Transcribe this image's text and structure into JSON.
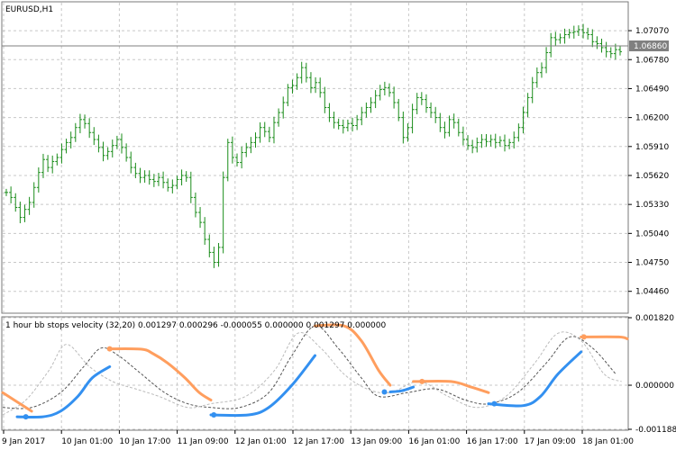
{
  "window": {
    "symbol_title": "EURUSD,H1",
    "current_price_label": "1.06860"
  },
  "chart_data": [
    {
      "type": "bar",
      "title": "EURUSD,H1",
      "series_kind": "ohlc-bars",
      "ylim": [
        1.0425,
        1.0735
      ],
      "y_ticks": [
        "1.07070",
        "1.06780",
        "1.06490",
        "1.06200",
        "1.05910",
        "1.05620",
        "1.05330",
        "1.05040",
        "1.04750",
        "1.04460"
      ],
      "current_price": 1.0686,
      "colors": {
        "bars": "#1a8c1a",
        "price_line": "#7f7f7f",
        "grid": "#c8c8c8"
      },
      "closes": [
        1.0545,
        1.054,
        1.053,
        1.052,
        1.0528,
        1.0535,
        1.055,
        1.0565,
        1.0578,
        1.057,
        1.0576,
        1.058,
        1.0588,
        1.0595,
        1.06,
        1.061,
        1.0618,
        1.0614,
        1.0605,
        1.0598,
        1.059,
        1.0582,
        1.0586,
        1.0592,
        1.0598,
        1.059,
        1.058,
        1.057,
        1.0564,
        1.056,
        1.0562,
        1.0558,
        1.0556,
        1.056,
        1.0555,
        1.055,
        1.0552,
        1.0558,
        1.0562,
        1.056,
        1.054,
        1.0525,
        1.0515,
        1.0498,
        1.0485,
        1.0475,
        1.049,
        1.056,
        1.0595,
        1.058,
        1.0575,
        1.0585,
        1.059,
        1.0595,
        1.06,
        1.061,
        1.0606,
        1.06,
        1.0615,
        1.0625,
        1.0635,
        1.065,
        1.0652,
        1.066,
        1.067,
        1.066,
        1.065,
        1.0655,
        1.0645,
        1.063,
        1.062,
        1.0615,
        1.0612,
        1.061,
        1.0614,
        1.0612,
        1.0618,
        1.0625,
        1.063,
        1.0635,
        1.0642,
        1.0648,
        1.065,
        1.0645,
        1.0635,
        1.062,
        1.06,
        1.061,
        1.0628,
        1.064,
        1.0638,
        1.063,
        1.0625,
        1.062,
        1.061,
        1.0605,
        1.0618,
        1.0615,
        1.0605,
        1.0598,
        1.0592,
        1.059,
        1.0595,
        1.0598,
        1.0596,
        1.0598,
        1.0595,
        1.0597,
        1.0592,
        1.0595,
        1.06,
        1.061,
        1.0625,
        1.064,
        1.0655,
        1.0665,
        1.067,
        1.0685,
        1.07,
        1.0698,
        1.07,
        1.0703,
        1.0705,
        1.0706,
        1.0708,
        1.0705,
        1.0703,
        1.0696,
        1.0694,
        1.069,
        1.0686,
        1.0684,
        1.0688,
        1.0686
      ]
    },
    {
      "type": "line",
      "title": "1 hour bb stops velocity (32,20) 0.001297 0.000296 -0.000055 0.000000 0.001297 0.000000",
      "ylim": [
        -0.001188,
        0.00182
      ],
      "y_ticks": [
        "0.001820",
        "0.000000",
        "-0.001188"
      ],
      "series": [
        {
          "color": "#ff9e5e",
          "points": [
            [
              0,
              -0.0002
            ],
            [
              8,
              -0.0006
            ],
            [
              10,
              -0.0007
            ]
          ]
        },
        {
          "color": "#3390f0",
          "points": [
            [
              5,
              -0.00085
            ],
            [
              14,
              -0.00085
            ],
            [
              20,
              -0.0007
            ],
            [
              26,
              -0.0003
            ],
            [
              31,
              0.0002
            ],
            [
              37,
              0.0005
            ]
          ]
        },
        {
          "color": "#ff9e5e",
          "points": [
            [
              37,
              0.00098
            ],
            [
              48,
              0.00097
            ],
            [
              52,
              0.00085
            ],
            [
              57,
              0.0006
            ],
            [
              63,
              0.0002
            ],
            [
              68,
              -0.0002
            ],
            [
              72,
              -0.0004
            ]
          ]
        },
        {
          "color": "#3390f0",
          "points": [
            [
              72,
              -0.0008
            ],
            [
              85,
              -0.0008
            ],
            [
              92,
              -0.0006
            ],
            [
              100,
              0
            ],
            [
              108,
              0.0008
            ]
          ]
        },
        {
          "color": "#ff9e5e",
          "points": [
            [
              108,
              0.0016
            ],
            [
              118,
              0.0016
            ],
            [
              124,
              0.0012
            ],
            [
              130,
              0.0004
            ],
            [
              134,
              0
            ]
          ]
        },
        {
          "color": "#3390f0",
          "points": [
            [
              134,
              -0.00018
            ],
            [
              138,
              -0.00015
            ],
            [
              142,
              -5e-05
            ]
          ]
        },
        {
          "color": "#ff9e5e",
          "points": [
            [
              142,
              0.0001
            ],
            [
              155,
              0.0001
            ],
            [
              162,
              -5e-05
            ],
            [
              168,
              -0.0002
            ]
          ]
        },
        {
          "color": "#3390f0",
          "points": [
            [
              168,
              -0.0005
            ],
            [
              180,
              -0.00055
            ],
            [
              186,
              -0.0003
            ],
            [
              192,
              0.0003
            ],
            [
              200,
              0.0009
            ]
          ]
        },
        {
          "color": "#ff9e5e",
          "points": [
            [
              200,
              0.0013
            ],
            [
              213,
              0.0013
            ],
            [
              216,
              0.00125
            ]
          ]
        }
      ],
      "dots": [
        {
          "color": "#3390f0",
          "x": 8,
          "y": -0.00085
        },
        {
          "color": "#ff9e5e",
          "x": 37,
          "y": 0.00098
        },
        {
          "color": "#3390f0",
          "x": 73,
          "y": -0.0008
        },
        {
          "color": "#3390f0",
          "x": 132,
          "y": -0.00018
        },
        {
          "color": "#ff9e5e",
          "x": 145,
          "y": 0.0001
        },
        {
          "color": "#3390f0",
          "x": 170,
          "y": -0.0005
        },
        {
          "color": "#ff9e5e",
          "x": 201,
          "y": 0.0013
        }
      ],
      "dashed_guides": [
        {
          "color": "#555555",
          "points": [
            [
              0,
              -0.0006
            ],
            [
              10,
              -0.0006
            ],
            [
              20,
              -0.0002
            ],
            [
              28,
              0.0005
            ],
            [
              34,
              0.001
            ],
            [
              40,
              0.0008
            ],
            [
              48,
              0.0003
            ],
            [
              56,
              -0.0002
            ],
            [
              64,
              -0.0005
            ],
            [
              72,
              -0.0006
            ],
            [
              82,
              -0.0006
            ],
            [
              92,
              -0.0002
            ],
            [
              100,
              0.0008
            ],
            [
              108,
              0.0016
            ],
            [
              116,
              0.001
            ],
            [
              124,
              0.0002
            ],
            [
              130,
              -0.0003
            ],
            [
              140,
              -0.0002
            ],
            [
              150,
              -0.0001
            ],
            [
              160,
              -0.0004
            ],
            [
              168,
              -0.0005
            ],
            [
              178,
              -0.0002
            ],
            [
              188,
              0.0006
            ],
            [
              196,
              0.0013
            ],
            [
              204,
              0.001
            ],
            [
              212,
              0.0003
            ]
          ]
        },
        {
          "color": "#bbbbbb",
          "points": [
            [
              0,
              -0.0008
            ],
            [
              8,
              -0.0004
            ],
            [
              16,
              0.0004
            ],
            [
              22,
              0.0011
            ],
            [
              30,
              0.0005
            ],
            [
              38,
              0.0001
            ],
            [
              46,
              -0.0001
            ],
            [
              54,
              -0.0003
            ],
            [
              64,
              -0.0006
            ],
            [
              72,
              -0.0005
            ],
            [
              84,
              -0.0003
            ],
            [
              94,
              0.0004
            ],
            [
              102,
              0.0014
            ],
            [
              110,
              0.001
            ],
            [
              118,
              0.0003
            ],
            [
              126,
              -0.0001
            ],
            [
              134,
              -0.0002
            ],
            [
              144,
              0.0001
            ],
            [
              154,
              -0.0003
            ],
            [
              164,
              -0.0006
            ],
            [
              174,
              -0.0003
            ],
            [
              184,
              0.0006
            ],
            [
              192,
              0.0014
            ],
            [
              200,
              0.0012
            ],
            [
              208,
              0.0003
            ],
            [
              214,
              0.0001
            ]
          ]
        }
      ]
    }
  ],
  "x_axis": {
    "labels": [
      "9 Jan 2017",
      "10 Jan 01:00",
      "10 Jan 17:00",
      "11 Jan 09:00",
      "12 Jan 01:00",
      "12 Jan 17:00",
      "13 Jan 09:00",
      "16 Jan 01:00",
      "16 Jan 17:00",
      "17 Jan 09:00",
      "18 Jan 01:00"
    ]
  }
}
